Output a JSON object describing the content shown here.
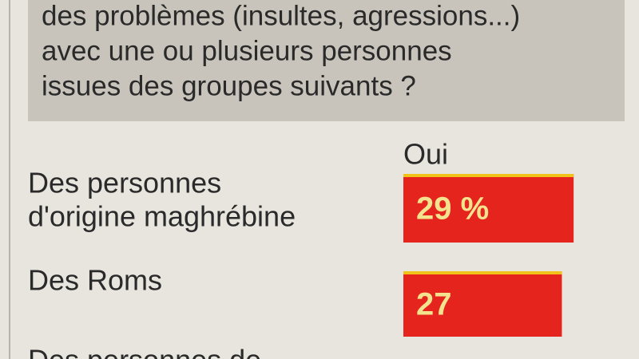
{
  "chart_data": {
    "type": "bar",
    "question_lines": [
      "des problèmes (insultes, agressions...)",
      "avec une ou plusieurs personnes",
      "issues des groupes suivants ?"
    ],
    "column_label": "Oui",
    "categories": [
      [
        "Des personnes",
        "d'origine maghrébine"
      ],
      [
        "Des Roms"
      ],
      [
        "Des personnes de"
      ]
    ],
    "values": [
      29,
      27,
      null
    ],
    "value_labels": [
      "29 %",
      "27",
      null
    ],
    "color": "#e5241d"
  }
}
